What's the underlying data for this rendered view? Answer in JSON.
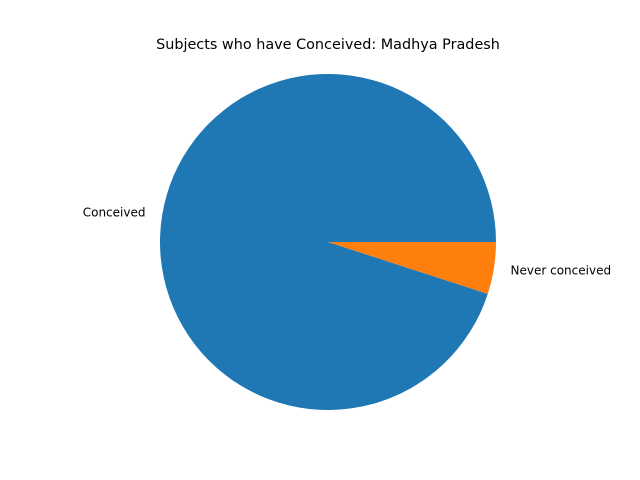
{
  "chart_data": {
    "type": "pie",
    "title": "Subjects who have Conceived: Madhya Pradesh",
    "labels": [
      "Conceived",
      "Never conceived"
    ],
    "values": [
      95,
      5
    ],
    "colors": [
      "#1f77b4",
      "#ff7f0e"
    ],
    "start_angle_deg": 0,
    "direction": "counterclockwise",
    "legend": "none"
  }
}
